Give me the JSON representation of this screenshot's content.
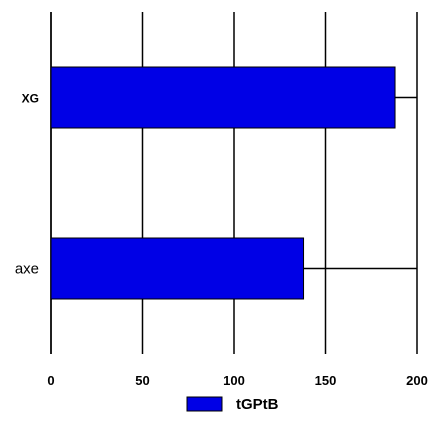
{
  "chart_data": {
    "type": "bar",
    "orientation": "horizontal",
    "categories": [
      "XG",
      "axe"
    ],
    "series": [
      {
        "name": "tGPtB",
        "values": [
          188,
          138
        ],
        "color": "#0000e6"
      }
    ],
    "xlim": [
      0,
      200
    ],
    "x_ticks": [
      "0",
      "50",
      "100",
      "150",
      "200"
    ],
    "grid": true,
    "legend": "bottom"
  }
}
